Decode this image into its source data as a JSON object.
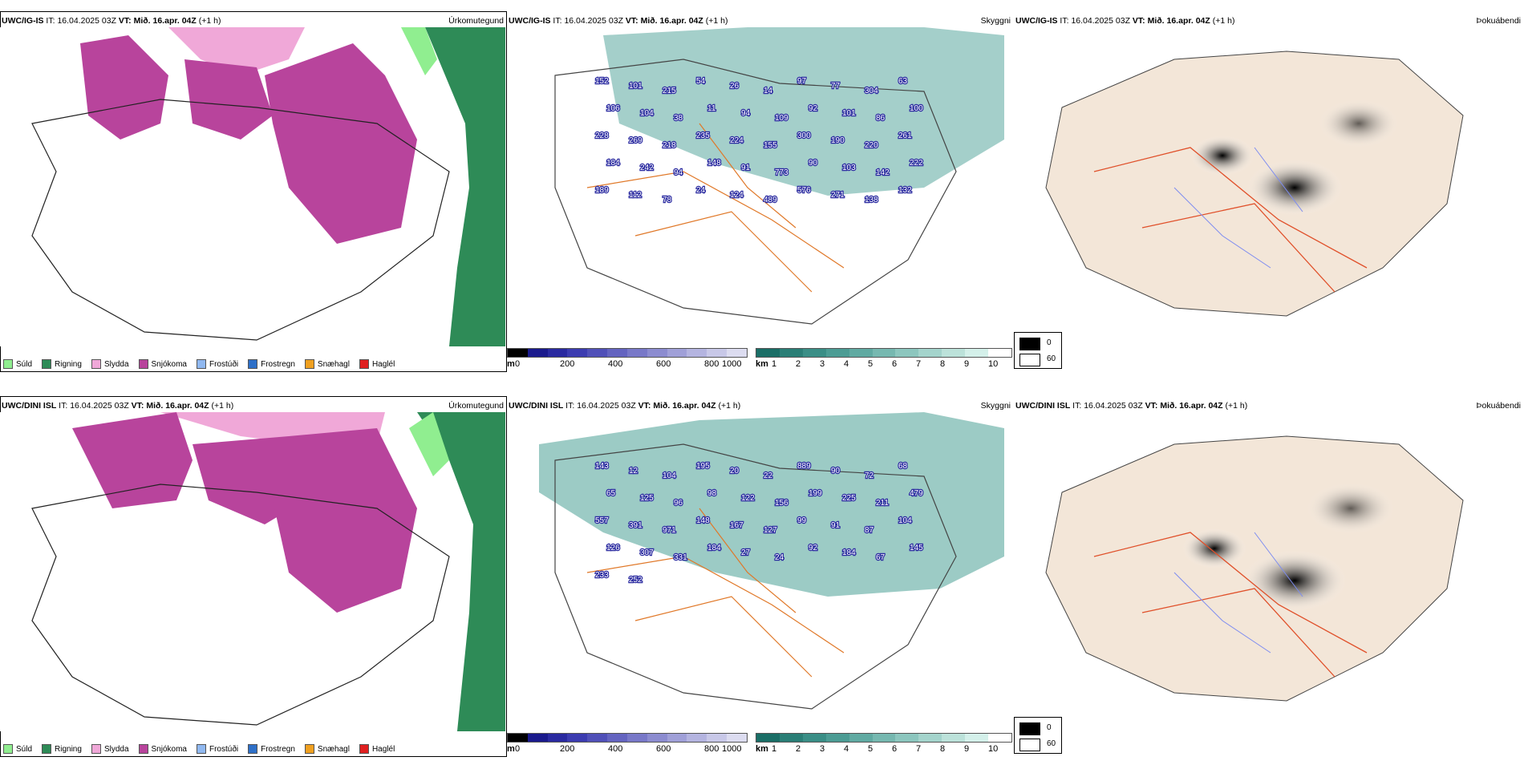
{
  "rows": [
    {
      "model": "UWC/IG-IS",
      "it_label": "IT:",
      "it_value": "16.04.2025 03Z",
      "vt_label": "VT:",
      "vt_value": "Mið. 16.apr. 04Z",
      "lead": "(+1 h)",
      "precip_title": "Úrkomutegund",
      "vis_title": "Skyggni",
      "fog_title": "Þokuábendi",
      "peak_labels": [
        "152",
        "101",
        "215",
        "54",
        "26",
        "14",
        "97",
        "77",
        "304",
        "63",
        "106",
        "104",
        "38",
        "11",
        "94",
        "109",
        "92",
        "101",
        "86",
        "100",
        "228",
        "269",
        "218",
        "235",
        "224",
        "155",
        "300",
        "190",
        "220",
        "261",
        "184",
        "242",
        "94",
        "148",
        "91",
        "773",
        "90",
        "103",
        "142",
        "222",
        "189",
        "112",
        "78",
        "24",
        "124",
        "489",
        "576",
        "271",
        "138",
        "132"
      ]
    },
    {
      "model": "UWC/DINI ISL",
      "it_label": "IT:",
      "it_value": "16.04.2025 03Z",
      "vt_label": "VT:",
      "vt_value": "Mið. 16.apr. 04Z",
      "lead": "(+1 h)",
      "precip_title": "Úrkomutegund",
      "vis_title": "Skyggni",
      "fog_title": "Þokuábendi",
      "peak_labels": [
        "143",
        "12",
        "104",
        "195",
        "20",
        "22",
        "889",
        "90",
        "72",
        "68",
        "65",
        "125",
        "96",
        "98",
        "122",
        "156",
        "199",
        "225",
        "211",
        "479",
        "557",
        "391",
        "971",
        "148",
        "167",
        "127",
        "99",
        "91",
        "87",
        "104",
        "126",
        "307",
        "331",
        "184",
        "27",
        "24",
        "92",
        "184",
        "67",
        "145",
        "233",
        "252"
      ]
    }
  ],
  "precip_legend": [
    {
      "label": "Súld",
      "color": "#90ee90"
    },
    {
      "label": "Rigning",
      "color": "#2e8b57"
    },
    {
      "label": "Slydda",
      "color": "#f0a8d8"
    },
    {
      "label": "Snjókoma",
      "color": "#b8449c"
    },
    {
      "label": "Frostúði",
      "color": "#90b8f0"
    },
    {
      "label": "Frostregn",
      "color": "#2e70c8"
    },
    {
      "label": "Snæhagl",
      "color": "#f0a020"
    },
    {
      "label": "Haglél",
      "color": "#e02020"
    }
  ],
  "height_bar": {
    "unit": "m",
    "ticks": [
      "0",
      "200",
      "400",
      "600",
      "800",
      "1000"
    ],
    "colors": [
      "#000000",
      "#1a1a8c",
      "#2a2aa0",
      "#3c3cb0",
      "#5050b8",
      "#6464c0",
      "#7878c8",
      "#8c8cd0",
      "#a0a0d8",
      "#b4b4e0",
      "#c8c8e8",
      "#dcdcf0"
    ]
  },
  "visibility_bar": {
    "unit": "km",
    "ticks": [
      "1",
      "2",
      "3",
      "4",
      "5",
      "6",
      "7",
      "8",
      "9",
      "10"
    ],
    "colors": [
      "#1a6e66",
      "#2a7e76",
      "#3a8e86",
      "#4c9c94",
      "#60aaa2",
      "#76b8b0",
      "#8cc6be",
      "#a4d4cc",
      "#bce2da",
      "#d4f0ea",
      "#ffffff"
    ]
  },
  "fog_legend": [
    {
      "label": "0",
      "color": "#000000"
    },
    {
      "label": "60",
      "color": "#ffffff"
    }
  ],
  "colors": {
    "land": "#f3e6d8",
    "coast": "#222222",
    "roads": "#e07828",
    "rivers": "#7d8cf0",
    "fog_roads": "#e0502a",
    "snow": "#b8449c",
    "sleet": "#f0a8d8",
    "rain": "#2e8b57",
    "drizzle": "#90ee90",
    "vis_fill": "#2a8a82",
    "low_cloud": "#2a2aa0"
  }
}
